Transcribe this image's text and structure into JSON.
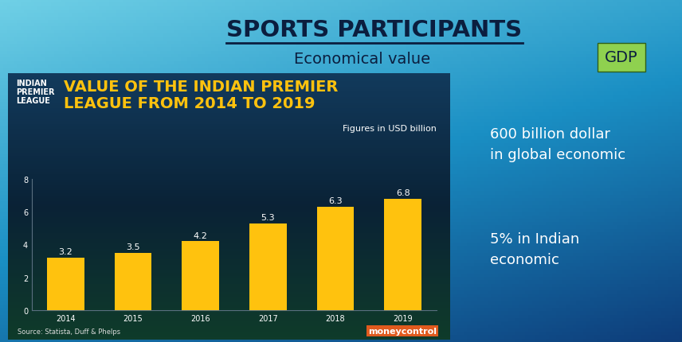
{
  "slide": {
    "title": "SPORTS PARTICIPANTS",
    "subtitle": "Economical value",
    "box_label": "GDP",
    "notes": [
      "600 billion dollar\nin global economic",
      "5% in Indian\neconomic"
    ]
  },
  "chart_data": {
    "type": "bar",
    "title": "VALUE OF THE INDIAN PREMIER\nLEAGUE FROM 2014 TO 2019",
    "subtitle": "Figures in USD billion",
    "annotations": [
      "INDIAN\nPREMIER\nLEAGUE",
      "Source: Statista, Duff & Phelps",
      "moneycontrol"
    ],
    "categories": [
      "2014",
      "2015",
      "2016",
      "2017",
      "2018",
      "2019"
    ],
    "values": [
      3.2,
      3.5,
      4.2,
      5.3,
      6.3,
      6.8
    ],
    "color": "#ffc20e",
    "ylim": [
      0,
      8
    ],
    "yticks": [
      0,
      2,
      4,
      6,
      8
    ],
    "data_labels": true,
    "grid": false
  }
}
